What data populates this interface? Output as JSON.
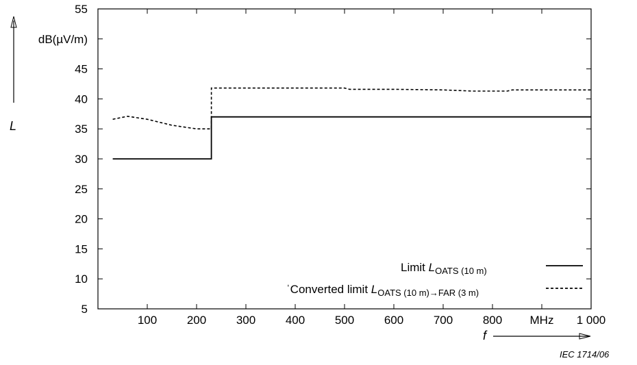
{
  "chart_data": {
    "type": "line",
    "title": "",
    "xlim": [
      0,
      1000
    ],
    "ylim": [
      5,
      55
    ],
    "x_ticks": [
      {
        "value": 100,
        "label": "100"
      },
      {
        "value": 200,
        "label": "200"
      },
      {
        "value": 300,
        "label": "300"
      },
      {
        "value": 400,
        "label": "400"
      },
      {
        "value": 500,
        "label": "500"
      },
      {
        "value": 600,
        "label": "600"
      },
      {
        "value": 700,
        "label": "700"
      },
      {
        "value": 800,
        "label": "800"
      },
      {
        "value": 900,
        "label": "MHz"
      },
      {
        "value": 1000,
        "label": "1 000"
      }
    ],
    "y_ticks": [
      {
        "value": 55,
        "label": "55"
      },
      {
        "value": 50,
        "label": "dB(µV/m)"
      },
      {
        "value": 45,
        "label": "45"
      },
      {
        "value": 40,
        "label": "40"
      },
      {
        "value": 35,
        "label": "35"
      },
      {
        "value": 30,
        "label": "30"
      },
      {
        "value": 25,
        "label": "25"
      },
      {
        "value": 20,
        "label": "20"
      },
      {
        "value": 15,
        "label": "15"
      },
      {
        "value": 10,
        "label": "10"
      },
      {
        "value": 5,
        "label": "5"
      }
    ],
    "xlabel": "f",
    "ylabel": "L",
    "grid": false,
    "legend_position": "bottom-right",
    "series": [
      {
        "name_main": "Limit ",
        "name_symbol": "L",
        "name_sub": "OATS (10 m)",
        "style": "solid",
        "x": [
          30,
          230,
          230,
          1000
        ],
        "y": [
          30,
          30,
          37,
          37
        ]
      },
      {
        "name_main": "Converted limit ",
        "name_symbol": "L",
        "name_sub": "OATS (10 m)→FAR (3 m)",
        "style": "dashed",
        "x": [
          30,
          60,
          100,
          150,
          200,
          230,
          230,
          300,
          400,
          500,
          510,
          600,
          700,
          760,
          830,
          840,
          900,
          1000
        ],
        "y": [
          36.6,
          37.1,
          36.6,
          35.6,
          35,
          35,
          41.8,
          41.8,
          41.8,
          41.8,
          41.6,
          41.6,
          41.5,
          41.3,
          41.3,
          41.5,
          41.5,
          41.5
        ]
      }
    ]
  },
  "credit": "IEC   1714/06"
}
